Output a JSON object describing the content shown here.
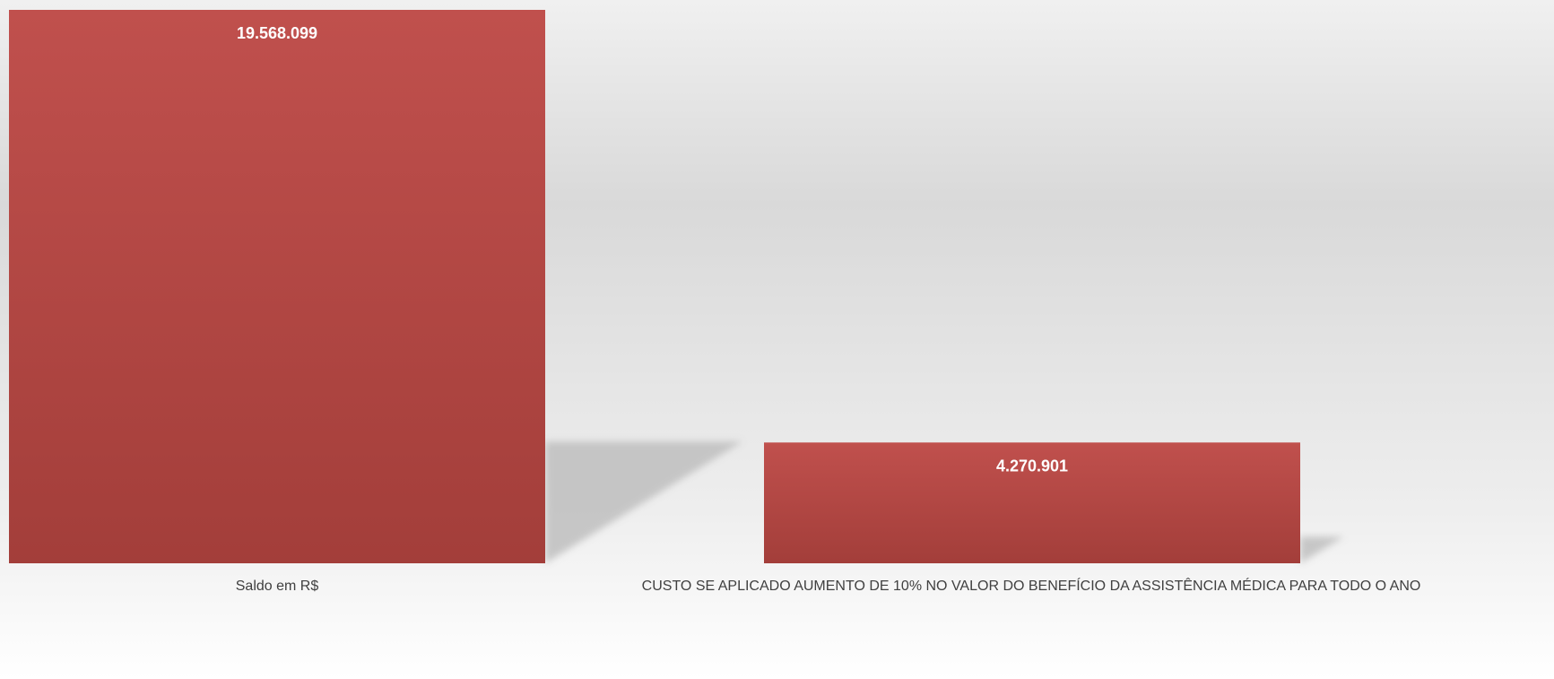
{
  "chart_data": {
    "type": "bar",
    "categories": [
      "Saldo em  R$",
      "CUSTO SE APLICADO AUMENTO DE 10% NO VALOR DO BENEFÍCIO DA ASSISTÊNCIA MÉDICA PARA TODO O ANO"
    ],
    "values": [
      19568099,
      4270901
    ],
    "data_labels": [
      "19.568.099",
      "4.270.901"
    ],
    "title": "",
    "xlabel": "",
    "ylabel": "",
    "ylim": [
      0,
      19568099
    ],
    "grid": false,
    "legend": "none",
    "colors": {
      "bar_top": "#c0504d",
      "bar_bottom": "#a33e3a",
      "background_light": "#ffffff",
      "background_dark": "#d9d9d9",
      "shadow": "#bfbfbf"
    }
  }
}
